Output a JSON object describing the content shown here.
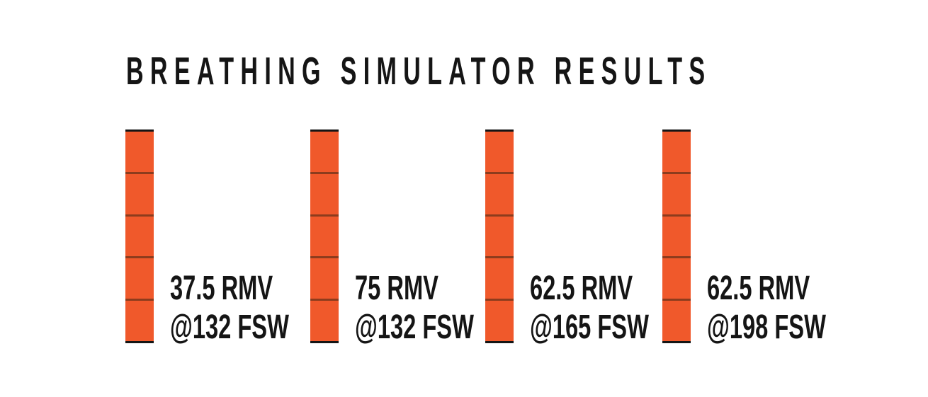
{
  "title": "BREATHING SIMULATOR RESULTS",
  "colors": {
    "bar_fill": "#F0592B",
    "bar_cap_line": "#151515",
    "segment_divider": "#462815",
    "text": "#151515",
    "background": "#FFFFFF"
  },
  "bars": [
    {
      "rmv": "37.5 RMV",
      "depth": "@132 FSW",
      "segments": 5
    },
    {
      "rmv": "75 RMV",
      "depth": "@132 FSW",
      "segments": 5
    },
    {
      "rmv": "62.5 RMV",
      "depth": "@165 FSW",
      "segments": 5
    },
    {
      "rmv": "62.5 RMV",
      "depth": "@198 FSW",
      "segments": 5
    }
  ],
  "chart_data": {
    "type": "bar",
    "title": "BREATHING SIMULATOR RESULTS",
    "categories": [
      "37.5 RMV @132 FSW",
      "75 RMV @132 FSW",
      "62.5 RMV @165 FSW",
      "62.5 RMV @198 FSW"
    ],
    "values": [
      5,
      5,
      5,
      5
    ],
    "values_unit": "stacked segments per bar (all bars equal height)",
    "xlabel": "",
    "ylabel": "",
    "legend": "none",
    "grid": false,
    "bar_orientation": "vertical",
    "bar_color": "#F0592B"
  }
}
